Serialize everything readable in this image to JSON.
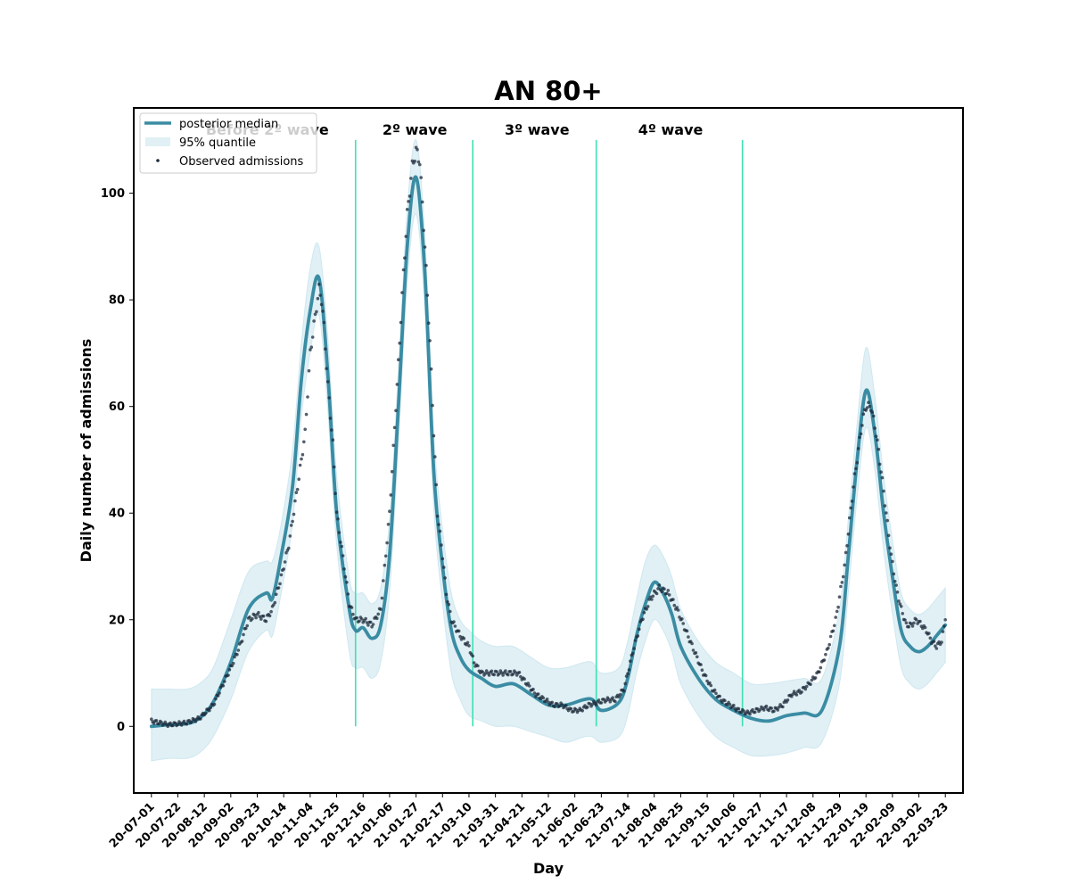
{
  "chart_data": {
    "type": "line",
    "title": "AN 80+",
    "xlabel": "Day",
    "ylabel": "Daily number of admissions",
    "ylim": [
      -12.5,
      116
    ],
    "xlim": [
      "2020-06-17",
      "2022-04-06"
    ],
    "x_ticks": [
      "20-07-01",
      "20-07-22",
      "20-08-12",
      "20-09-02",
      "20-09-23",
      "20-10-14",
      "20-11-04",
      "20-11-25",
      "20-12-16",
      "21-01-06",
      "21-01-27",
      "21-02-17",
      "21-03-10",
      "21-03-31",
      "21-04-21",
      "21-05-12",
      "21-06-02",
      "21-06-23",
      "21-07-14",
      "21-08-04",
      "21-08-25",
      "21-09-15",
      "21-10-06",
      "21-10-27",
      "21-11-17",
      "21-12-08",
      "21-12-29",
      "22-01-19",
      "22-02-09",
      "22-03-02",
      "22-03-23"
    ],
    "y_ticks": [
      0,
      20,
      40,
      60,
      80,
      100
    ],
    "grid": false,
    "legend_position": "top-left",
    "colors": {
      "median": "#3a8ca3",
      "band": "#add8e6",
      "points": "#1c2a3a",
      "wave_lines": "#3fe0b5"
    },
    "wave_boundaries": [
      "2020-12-10",
      "2021-03-13",
      "2021-06-19",
      "2021-10-13"
    ],
    "wave_line_range": [
      0,
      110
    ],
    "wave_labels": [
      {
        "text": "Before 2º wave",
        "x": "2020-10-01",
        "y": 111
      },
      {
        "text": "2º wave",
        "x": "2021-01-26",
        "y": 111
      },
      {
        "text": "3º wave",
        "x": "2021-05-03",
        "y": 111
      },
      {
        "text": "4º wave",
        "x": "2021-08-17",
        "y": 111
      }
    ],
    "legend": [
      {
        "label": "posterior median",
        "kind": "line"
      },
      {
        "label": "95% quantile",
        "kind": "band"
      },
      {
        "label": "Observed admissions",
        "kind": "points"
      }
    ],
    "series": [
      {
        "name": "posterior median",
        "points": [
          [
            "2020-07-01",
            0
          ],
          [
            "2020-07-15",
            0.3
          ],
          [
            "2020-07-29",
            0.5
          ],
          [
            "2020-08-08",
            1.5
          ],
          [
            "2020-08-19",
            4.5
          ],
          [
            "2020-09-02",
            12
          ],
          [
            "2020-09-16",
            22
          ],
          [
            "2020-09-30",
            25
          ],
          [
            "2020-10-05",
            24
          ],
          [
            "2020-10-12",
            32
          ],
          [
            "2020-10-21",
            45
          ],
          [
            "2020-10-28",
            65
          ],
          [
            "2020-11-04",
            78
          ],
          [
            "2020-11-11",
            84
          ],
          [
            "2020-11-18",
            66
          ],
          [
            "2020-11-25",
            40
          ],
          [
            "2020-12-05",
            22
          ],
          [
            "2020-12-10",
            18
          ],
          [
            "2020-12-16",
            18.5
          ],
          [
            "2020-12-23",
            16.5
          ],
          [
            "2020-12-30",
            19
          ],
          [
            "2021-01-06",
            32
          ],
          [
            "2021-01-13",
            60
          ],
          [
            "2021-01-20",
            90
          ],
          [
            "2021-01-27",
            103
          ],
          [
            "2021-02-03",
            85
          ],
          [
            "2021-02-10",
            48
          ],
          [
            "2021-02-17",
            30
          ],
          [
            "2021-02-24",
            18
          ],
          [
            "2021-03-03",
            13
          ],
          [
            "2021-03-10",
            10.5
          ],
          [
            "2021-03-20",
            9
          ],
          [
            "2021-03-31",
            7.5
          ],
          [
            "2021-04-14",
            8
          ],
          [
            "2021-04-28",
            6
          ],
          [
            "2021-05-12",
            4
          ],
          [
            "2021-05-26",
            4
          ],
          [
            "2021-06-09",
            5
          ],
          [
            "2021-06-16",
            5
          ],
          [
            "2021-06-23",
            3
          ],
          [
            "2021-07-07",
            4.5
          ],
          [
            "2021-07-14",
            9
          ],
          [
            "2021-07-21",
            17
          ],
          [
            "2021-07-28",
            23
          ],
          [
            "2021-08-04",
            27
          ],
          [
            "2021-08-11",
            25
          ],
          [
            "2021-08-18",
            21
          ],
          [
            "2021-08-25",
            15
          ],
          [
            "2021-09-08",
            9
          ],
          [
            "2021-09-22",
            5
          ],
          [
            "2021-10-06",
            3
          ],
          [
            "2021-10-20",
            1.5
          ],
          [
            "2021-11-03",
            1
          ],
          [
            "2021-11-17",
            2
          ],
          [
            "2021-12-01",
            2.5
          ],
          [
            "2021-12-15",
            3
          ],
          [
            "2021-12-29",
            15
          ],
          [
            "2022-01-05",
            32
          ],
          [
            "2022-01-12",
            50
          ],
          [
            "2022-01-19",
            63
          ],
          [
            "2022-01-26",
            55
          ],
          [
            "2022-02-02",
            40
          ],
          [
            "2022-02-09",
            28
          ],
          [
            "2022-02-16",
            18
          ],
          [
            "2022-02-23",
            15
          ],
          [
            "2022-03-02",
            14
          ],
          [
            "2022-03-09",
            15
          ],
          [
            "2022-03-16",
            17
          ],
          [
            "2022-03-23",
            19
          ]
        ]
      },
      {
        "name": "95% quantile",
        "points": [
          [
            "2020-07-01",
            -6.5,
            7
          ],
          [
            "2020-07-15",
            -6,
            7
          ],
          [
            "2020-07-29",
            -6,
            7
          ],
          [
            "2020-08-08",
            -5,
            8
          ],
          [
            "2020-08-19",
            -2,
            11
          ],
          [
            "2020-09-02",
            5,
            20
          ],
          [
            "2020-09-16",
            14,
            29
          ],
          [
            "2020-09-30",
            18,
            31
          ],
          [
            "2020-10-05",
            17,
            31
          ],
          [
            "2020-10-12",
            25,
            38
          ],
          [
            "2020-10-21",
            38,
            52
          ],
          [
            "2020-10-28",
            58,
            72
          ],
          [
            "2020-11-04",
            70,
            86
          ],
          [
            "2020-11-11",
            77,
            90
          ],
          [
            "2020-11-18",
            59,
            73
          ],
          [
            "2020-11-25",
            34,
            47
          ],
          [
            "2020-12-05",
            14,
            28
          ],
          [
            "2020-12-10",
            11,
            25
          ],
          [
            "2020-12-16",
            11,
            25
          ],
          [
            "2020-12-23",
            9,
            23
          ],
          [
            "2020-12-30",
            12,
            26
          ],
          [
            "2021-01-06",
            25,
            39
          ],
          [
            "2021-01-13",
            53,
            67
          ],
          [
            "2021-01-20",
            83,
            97
          ],
          [
            "2021-01-27",
            96,
            110
          ],
          [
            "2021-02-03",
            78,
            92
          ],
          [
            "2021-02-10",
            41,
            55
          ],
          [
            "2021-02-17",
            23,
            37
          ],
          [
            "2021-02-24",
            10,
            25
          ],
          [
            "2021-03-03",
            5,
            20
          ],
          [
            "2021-03-10",
            2,
            18
          ],
          [
            "2021-03-20",
            1,
            16
          ],
          [
            "2021-03-31",
            0,
            15
          ],
          [
            "2021-04-14",
            0,
            15
          ],
          [
            "2021-04-28",
            -1,
            13
          ],
          [
            "2021-05-12",
            -2,
            11
          ],
          [
            "2021-05-26",
            -3,
            11
          ],
          [
            "2021-06-09",
            -2,
            12
          ],
          [
            "2021-06-16",
            -2,
            12
          ],
          [
            "2021-06-23",
            -3,
            10
          ],
          [
            "2021-07-07",
            -2,
            11
          ],
          [
            "2021-07-14",
            2,
            16
          ],
          [
            "2021-07-21",
            10,
            24
          ],
          [
            "2021-07-28",
            16,
            31
          ],
          [
            "2021-08-04",
            20,
            34
          ],
          [
            "2021-08-11",
            18,
            32
          ],
          [
            "2021-08-18",
            14,
            28
          ],
          [
            "2021-08-25",
            8,
            22
          ],
          [
            "2021-09-08",
            2,
            16
          ],
          [
            "2021-09-22",
            -2,
            12
          ],
          [
            "2021-10-06",
            -4,
            10
          ],
          [
            "2021-10-20",
            -5.5,
            8
          ],
          [
            "2021-11-03",
            -5.5,
            8
          ],
          [
            "2021-11-17",
            -5,
            8.5
          ],
          [
            "2021-12-01",
            -4,
            9
          ],
          [
            "2021-12-15",
            -3,
            9
          ],
          [
            "2021-12-29",
            8,
            22
          ],
          [
            "2022-01-05",
            25,
            39
          ],
          [
            "2022-01-12",
            43,
            57
          ],
          [
            "2022-01-19",
            56,
            71
          ],
          [
            "2022-01-26",
            48,
            62
          ],
          [
            "2022-02-02",
            33,
            47
          ],
          [
            "2022-02-09",
            21,
            35
          ],
          [
            "2022-02-16",
            11,
            25
          ],
          [
            "2022-02-23",
            8,
            22
          ],
          [
            "2022-03-02",
            7,
            21
          ],
          [
            "2022-03-09",
            8,
            22
          ],
          [
            "2022-03-16",
            10,
            24
          ],
          [
            "2022-03-23",
            12,
            26
          ]
        ]
      },
      {
        "name": "Observed admissions",
        "points": [
          [
            "2020-07-01",
            1
          ],
          [
            "2020-07-15",
            0.3
          ],
          [
            "2020-07-29",
            0.7
          ],
          [
            "2020-08-08",
            1.5
          ],
          [
            "2020-08-19",
            4
          ],
          [
            "2020-09-02",
            11
          ],
          [
            "2020-09-09",
            15
          ],
          [
            "2020-09-16",
            20
          ],
          [
            "2020-09-23",
            21
          ],
          [
            "2020-09-30",
            20
          ],
          [
            "2020-10-05",
            22
          ],
          [
            "2020-10-12",
            28
          ],
          [
            "2020-10-18",
            34
          ],
          [
            "2020-10-25",
            45
          ],
          [
            "2020-10-31",
            55
          ],
          [
            "2020-11-04",
            70
          ],
          [
            "2020-11-08",
            77
          ],
          [
            "2020-11-11",
            82
          ],
          [
            "2020-11-13",
            80
          ],
          [
            "2020-11-15",
            75
          ],
          [
            "2020-11-18",
            64
          ],
          [
            "2020-11-22",
            53
          ],
          [
            "2020-11-25",
            40
          ],
          [
            "2020-12-01",
            30
          ],
          [
            "2020-12-05",
            23
          ],
          [
            "2020-12-10",
            20
          ],
          [
            "2020-12-16",
            20
          ],
          [
            "2020-12-23",
            19
          ],
          [
            "2020-12-30",
            22
          ],
          [
            "2021-01-06",
            40
          ],
          [
            "2021-01-13",
            68
          ],
          [
            "2021-01-17",
            85
          ],
          [
            "2021-01-20",
            96
          ],
          [
            "2021-01-24",
            105
          ],
          [
            "2021-01-27",
            108
          ],
          [
            "2021-01-30",
            106
          ],
          [
            "2021-02-03",
            90
          ],
          [
            "2021-02-07",
            72
          ],
          [
            "2021-02-10",
            55
          ],
          [
            "2021-02-13",
            40
          ],
          [
            "2021-02-17",
            32
          ],
          [
            "2021-02-20",
            25
          ],
          [
            "2021-02-24",
            20
          ],
          [
            "2021-03-03",
            17
          ],
          [
            "2021-03-10",
            15
          ],
          [
            "2021-03-14",
            12
          ],
          [
            "2021-03-20",
            10
          ],
          [
            "2021-03-27",
            10
          ],
          [
            "2021-04-04",
            10
          ],
          [
            "2021-04-11",
            10
          ],
          [
            "2021-04-18",
            10
          ],
          [
            "2021-04-25",
            8
          ],
          [
            "2021-05-02",
            6
          ],
          [
            "2021-05-09",
            5
          ],
          [
            "2021-05-16",
            4
          ],
          [
            "2021-05-23",
            4
          ],
          [
            "2021-05-30",
            3
          ],
          [
            "2021-06-06",
            3
          ],
          [
            "2021-06-13",
            4
          ],
          [
            "2021-06-20",
            4.5
          ],
          [
            "2021-06-27",
            5
          ],
          [
            "2021-07-04",
            5
          ],
          [
            "2021-07-11",
            7
          ],
          [
            "2021-07-18",
            14
          ],
          [
            "2021-07-25",
            20
          ],
          [
            "2021-08-01",
            24
          ],
          [
            "2021-08-08",
            26
          ],
          [
            "2021-08-15",
            25
          ],
          [
            "2021-08-22",
            22
          ],
          [
            "2021-08-29",
            18
          ],
          [
            "2021-09-05",
            14
          ],
          [
            "2021-09-12",
            10
          ],
          [
            "2021-09-19",
            7
          ],
          [
            "2021-09-26",
            5
          ],
          [
            "2021-10-03",
            4
          ],
          [
            "2021-10-10",
            3
          ],
          [
            "2021-10-17",
            2.5
          ],
          [
            "2021-10-24",
            3
          ],
          [
            "2021-10-31",
            3.5
          ],
          [
            "2021-11-07",
            3
          ],
          [
            "2021-11-14",
            4
          ],
          [
            "2021-11-21",
            6
          ],
          [
            "2021-11-28",
            6.5
          ],
          [
            "2021-12-05",
            8
          ],
          [
            "2021-12-12",
            10
          ],
          [
            "2021-12-19",
            14
          ],
          [
            "2021-12-26",
            20
          ],
          [
            "2022-01-02",
            30
          ],
          [
            "2022-01-09",
            45
          ],
          [
            "2022-01-16",
            57
          ],
          [
            "2022-01-19",
            60
          ],
          [
            "2022-01-23",
            60
          ],
          [
            "2022-01-27",
            55
          ],
          [
            "2022-01-31",
            48
          ],
          [
            "2022-02-04",
            40
          ],
          [
            "2022-02-08",
            32
          ],
          [
            "2022-02-12",
            26
          ],
          [
            "2022-02-16",
            22
          ],
          [
            "2022-02-20",
            19
          ],
          [
            "2022-02-24",
            19
          ],
          [
            "2022-02-28",
            20
          ],
          [
            "2022-03-04",
            19
          ],
          [
            "2022-03-08",
            18
          ],
          [
            "2022-03-12",
            16
          ],
          [
            "2022-03-16",
            15
          ],
          [
            "2022-03-20",
            16
          ],
          [
            "2022-03-23",
            20
          ]
        ]
      }
    ]
  }
}
